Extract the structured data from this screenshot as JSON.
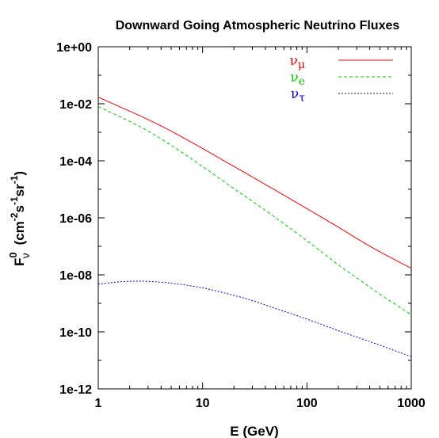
{
  "chart_data": {
    "type": "line",
    "title": "Downward Going Atmospheric Neutrino Fluxes",
    "xlabel": "E (GeV)",
    "ylabel": {
      "base": "F",
      "sup0": "0",
      "sub": "ν",
      "units_open": "(cm",
      "exp1": "-2",
      "s": "s",
      "exp2": "-1",
      "sr": "sr",
      "exp3": "-1",
      "units_close": ")"
    },
    "xscale": "log",
    "yscale": "log",
    "xlim": [
      1,
      1000
    ],
    "ylim": [
      1e-12,
      1
    ],
    "xticks": [
      {
        "value": 1,
        "label": "1"
      },
      {
        "value": 10,
        "label": "10"
      },
      {
        "value": 100,
        "label": "100"
      },
      {
        "value": 1000,
        "label": "1000"
      }
    ],
    "yticks": [
      {
        "value": 1,
        "label": "1e+00"
      },
      {
        "value": 0.01,
        "label": "1e-02"
      },
      {
        "value": 0.0001,
        "label": "1e-04"
      },
      {
        "value": 1e-06,
        "label": "1e-06"
      },
      {
        "value": 1e-08,
        "label": "1e-08"
      },
      {
        "value": 1e-10,
        "label": "1e-10"
      },
      {
        "value": 1e-12,
        "label": "1e-12"
      }
    ],
    "legend_position": "top-right",
    "grid": false,
    "series": [
      {
        "name": "ν",
        "subscript": "μ",
        "color": "#ff0000",
        "style": "solid",
        "x": [
          1,
          2,
          3,
          5,
          10,
          20,
          30,
          50,
          100,
          200,
          300,
          500,
          1000
        ],
        "y": [
          0.017,
          0.0055,
          0.0028,
          0.0011,
          0.00027,
          6.3e-05,
          2.7e-05,
          9.2e-06,
          2.1e-06,
          4.7e-07,
          1.9e-07,
          6.4e-08,
          1.7e-08
        ]
      },
      {
        "name": "ν",
        "subscript": "e",
        "color": "#00cc00",
        "style": "dashed",
        "x": [
          1,
          2,
          3,
          5,
          10,
          20,
          30,
          50,
          100,
          200,
          300,
          500,
          1000
        ],
        "y": [
          0.008,
          0.0024,
          0.0011,
          0.00035,
          6.3e-05,
          1.05e-05,
          3.8e-06,
          1.02e-06,
          1.58e-07,
          2.24e-08,
          7.9e-09,
          2.1e-09,
          4e-10
        ]
      },
      {
        "name": "ν",
        "subscript": "τ",
        "color": "#0000cc",
        "style": "dotted",
        "x": [
          1,
          1.5,
          2,
          2.5,
          3,
          5,
          10,
          20,
          30,
          50,
          100,
          200,
          300,
          500,
          1000
        ],
        "y": [
          4.7e-09,
          5.6e-09,
          5.9e-09,
          6e-09,
          5.9e-09,
          5.1e-09,
          3.5e-09,
          1.9e-09,
          1.25e-09,
          6.6e-10,
          2.8e-10,
          1.1e-10,
          6.6e-11,
          3.4e-11,
          1.35e-11
        ]
      }
    ]
  }
}
